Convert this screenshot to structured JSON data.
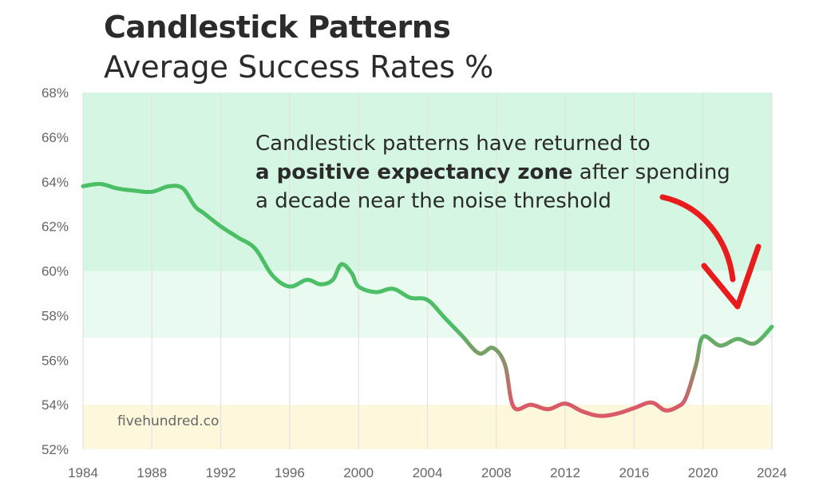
{
  "title": "Candlestick Patterns",
  "subtitle": "Average Success Rates %",
  "watermark": "fivehundred.co",
  "annotation": {
    "line1": "Candlestick patterns have returned to",
    "line2_bold": "a positive expectancy zone",
    "line2_rest": " after spending",
    "line3": "a decade near the noise threshold"
  },
  "colors": {
    "zone_high": "#d4f6e3",
    "zone_mid": "#e9faf0",
    "zone_low": "#fdf8dc",
    "line_good": "#4cbf66",
    "line_bad": "#d95b6a",
    "arrow": "#e81c1c",
    "grid": "#e2e2e2",
    "tick_text": "#666666"
  },
  "chart_data": {
    "type": "line",
    "title": "Candlestick Patterns",
    "subtitle": "Average Success Rates %",
    "xlabel": "",
    "ylabel": "",
    "xlim": [
      1984,
      2024
    ],
    "ylim": [
      52,
      68
    ],
    "x_ticks": [
      1984,
      1988,
      1992,
      1996,
      2000,
      2004,
      2008,
      2012,
      2016,
      2020,
      2024
    ],
    "x_tick_labels": [
      "1984",
      "1988",
      "1992",
      "1996",
      "2000",
      "2004",
      "2008",
      "2012",
      "2016",
      "2020",
      "2024"
    ],
    "y_ticks": [
      52,
      54,
      56,
      58,
      60,
      62,
      64,
      66,
      68
    ],
    "y_tick_labels": [
      "52%",
      "54%",
      "56%",
      "58%",
      "60%",
      "62%",
      "64%",
      "66%",
      "68%"
    ],
    "grid": true,
    "zones": [
      {
        "name": "positive expectancy",
        "from": 60,
        "to": 68
      },
      {
        "name": "moderate",
        "from": 57,
        "to": 60
      },
      {
        "name": "noise threshold",
        "from": 52,
        "to": 54
      }
    ],
    "series": [
      {
        "name": "Average success rate",
        "x": [
          1984,
          1985,
          1986,
          1987,
          1988,
          1989,
          1989.8,
          1990.5,
          1991,
          1992,
          1993,
          1994,
          1995,
          1996,
          1997,
          1997.8,
          1998.5,
          1999,
          1999.6,
          2000,
          2001,
          2002,
          2003,
          2004,
          2005,
          2006,
          2007,
          2007.8,
          2008.5,
          2009,
          2010,
          2011,
          2012,
          2013,
          2014,
          2015,
          2016,
          2017,
          2017.8,
          2018.5,
          2019,
          2019.6,
          2020,
          2021,
          2022,
          2023,
          2024
        ],
        "values": [
          63.8,
          63.9,
          63.7,
          63.6,
          63.55,
          63.8,
          63.7,
          62.9,
          62.6,
          62.0,
          61.5,
          61.0,
          59.8,
          59.3,
          59.6,
          59.4,
          59.6,
          60.3,
          59.9,
          59.3,
          59.05,
          59.2,
          58.8,
          58.7,
          57.9,
          57.1,
          56.3,
          56.55,
          55.8,
          53.9,
          54.0,
          53.8,
          54.05,
          53.7,
          53.5,
          53.6,
          53.85,
          54.1,
          53.75,
          53.9,
          54.3,
          55.8,
          57.05,
          56.65,
          56.95,
          56.75,
          57.5
        ]
      }
    ]
  }
}
